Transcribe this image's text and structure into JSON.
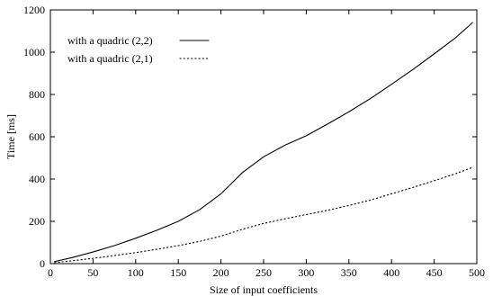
{
  "chart_data": {
    "type": "line",
    "title": "",
    "xlabel": "Size of input coefficients",
    "ylabel": "Time [ms]",
    "xlim": [
      0,
      500
    ],
    "ylim": [
      0,
      1200
    ],
    "xticks": [
      0,
      50,
      100,
      150,
      200,
      250,
      300,
      350,
      400,
      450,
      500
    ],
    "yticks": [
      0,
      200,
      400,
      600,
      800,
      1000,
      1200
    ],
    "grid": false,
    "legend_position": "top-left",
    "series": [
      {
        "name": "with a quadric (2,2)",
        "style": "solid",
        "color": "#000000",
        "x": [
          5,
          25,
          50,
          75,
          100,
          125,
          150,
          175,
          200,
          225,
          250,
          275,
          300,
          325,
          350,
          375,
          400,
          425,
          450,
          475,
          495
        ],
        "y": [
          10,
          28,
          55,
          85,
          120,
          158,
          200,
          255,
          330,
          430,
          505,
          560,
          605,
          660,
          718,
          780,
          848,
          918,
          992,
          1068,
          1140
        ]
      },
      {
        "name": "with a quadric (2,1)",
        "style": "dotted",
        "color": "#000000",
        "x": [
          5,
          25,
          50,
          75,
          100,
          125,
          150,
          175,
          200,
          225,
          250,
          275,
          300,
          325,
          350,
          375,
          400,
          425,
          450,
          475,
          495
        ],
        "y": [
          5,
          13,
          25,
          38,
          52,
          68,
          85,
          105,
          130,
          162,
          190,
          212,
          232,
          252,
          275,
          300,
          330,
          360,
          392,
          425,
          455
        ]
      }
    ]
  }
}
